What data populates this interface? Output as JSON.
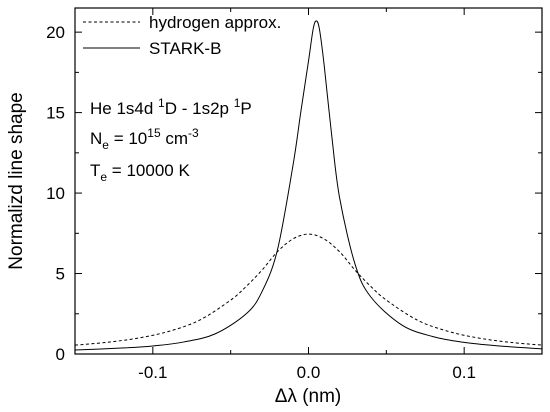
{
  "chart_data": {
    "type": "line",
    "xlabel": "Δλ (nm)",
    "ylabel": "Normalizd line shape",
    "xlim": [
      -0.15,
      0.15
    ],
    "ylim": [
      0,
      21.5
    ],
    "x_ticks": [
      -0.1,
      0.0,
      0.1
    ],
    "x_tick_labels": [
      "-0.1",
      "0.0",
      "0.1"
    ],
    "y_ticks": [
      0,
      5,
      10,
      15,
      20
    ],
    "y_tick_labels": [
      "0",
      "5",
      "10",
      "15",
      "20"
    ],
    "grid": false,
    "legend_position": "top-left",
    "series": [
      {
        "name": "hydrogen approx.",
        "style": "dashed",
        "color": "#000000",
        "x": [
          -0.15,
          -0.13,
          -0.11,
          -0.09,
          -0.07,
          -0.05,
          -0.04,
          -0.03,
          -0.02,
          -0.01,
          0.0,
          0.01,
          0.02,
          0.03,
          0.04,
          0.05,
          0.07,
          0.09,
          0.11,
          0.13,
          0.15
        ],
        "y": [
          0.55,
          0.72,
          0.98,
          1.4,
          2.1,
          3.35,
          4.2,
          5.2,
          6.35,
          7.15,
          7.45,
          7.15,
          6.35,
          5.2,
          4.2,
          3.35,
          2.1,
          1.4,
          0.98,
          0.72,
          0.55
        ]
      },
      {
        "name": "STARK-B",
        "style": "solid",
        "color": "#000000",
        "x": [
          -0.15,
          -0.12,
          -0.1,
          -0.08,
          -0.06,
          -0.04,
          -0.03,
          -0.02,
          -0.01,
          -0.005,
          0.0,
          0.003,
          0.005,
          0.007,
          0.01,
          0.015,
          0.02,
          0.03,
          0.04,
          0.06,
          0.08,
          0.1,
          0.12,
          0.15
        ],
        "y": [
          0.25,
          0.37,
          0.5,
          0.75,
          1.25,
          2.5,
          3.85,
          6.45,
          11.7,
          15.0,
          18.2,
          20.2,
          20.7,
          20.2,
          18.0,
          13.5,
          9.7,
          5.55,
          3.55,
          1.8,
          1.08,
          0.72,
          0.52,
          0.32
        ]
      }
    ],
    "annotations": {
      "line1": {
        "main": "He 1s4d ",
        "sup1": "1",
        "mid": "D - 1s2p ",
        "sup2": "1",
        "end": "P"
      },
      "line2": {
        "main": "N",
        "sub": "e",
        "mid": " = 10",
        "sup": "15",
        "end": " cm",
        "sup2": "-3"
      },
      "line3": {
        "main": "T",
        "sub": "e",
        "end": " = 10000 K"
      }
    }
  }
}
